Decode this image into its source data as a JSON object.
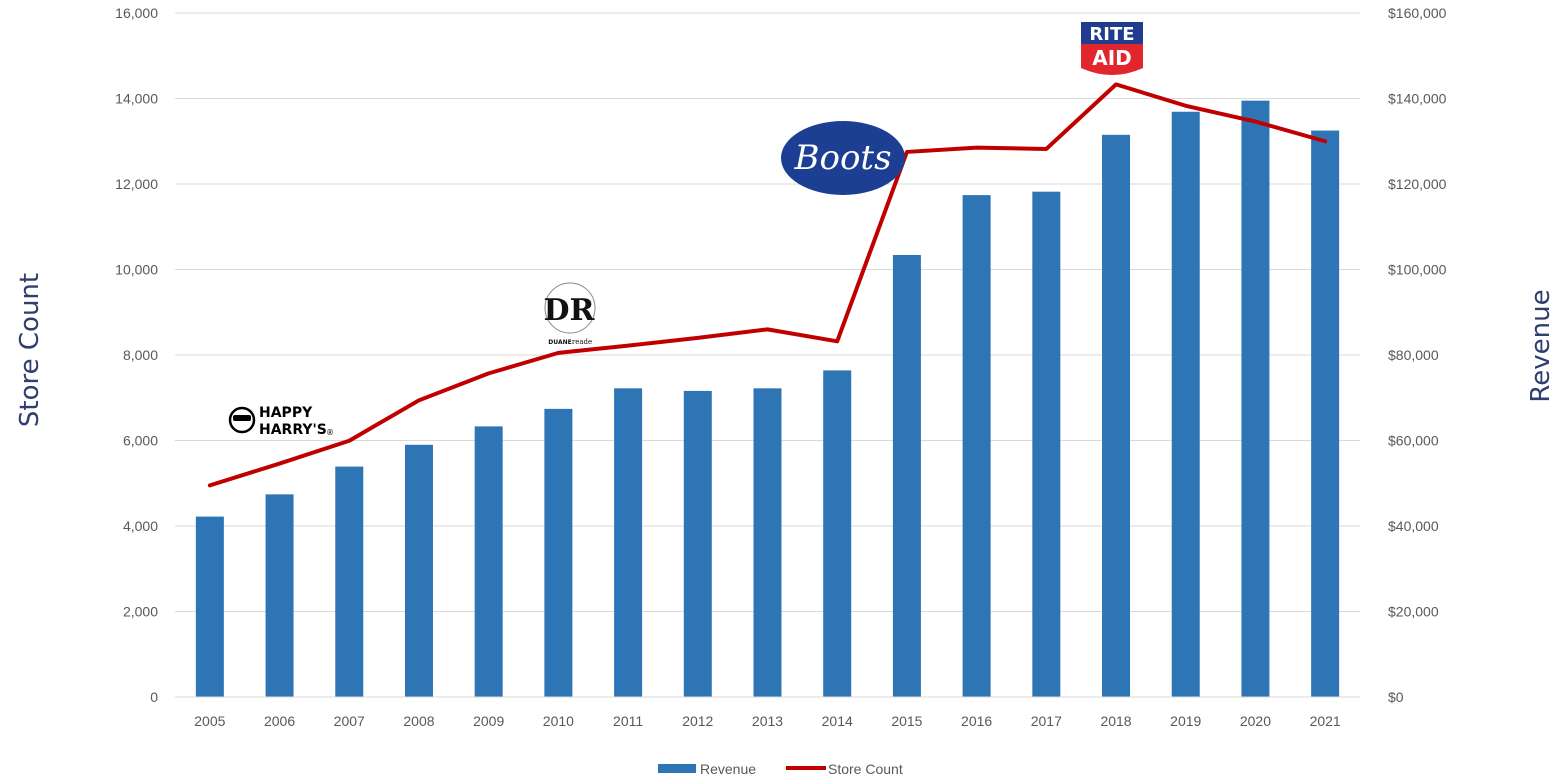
{
  "chart_data": {
    "type": "bar",
    "categories": [
      "2005",
      "2006",
      "2007",
      "2008",
      "2009",
      "2010",
      "2011",
      "2012",
      "2013",
      "2014",
      "2015",
      "2016",
      "2017",
      "2018",
      "2019",
      "2020",
      "2021"
    ],
    "series": [
      {
        "name": "Revenue",
        "type": "bar",
        "axis": "right",
        "color": "#2e75b6",
        "values": [
          42200,
          47400,
          53900,
          59000,
          63300,
          67400,
          72200,
          71600,
          72200,
          76400,
          103400,
          117400,
          118200,
          131500,
          136900,
          139500,
          132500
        ]
      },
      {
        "name": "Store Count",
        "type": "line",
        "axis": "left",
        "color": "#c00000",
        "values": [
          4950,
          5460,
          5995,
          6940,
          7570,
          8050,
          8220,
          8400,
          8600,
          8320,
          12750,
          12850,
          12820,
          14330,
          13830,
          13460,
          13000
        ]
      }
    ],
    "y_left": {
      "label": "Store Count",
      "range": [
        0,
        16000
      ],
      "ticks": [
        "0",
        "2,000",
        "4,000",
        "6,000",
        "8,000",
        "10,000",
        "12,000",
        "14,000",
        "16,000"
      ]
    },
    "y_right": {
      "label": "Revenue",
      "range": [
        0,
        160000
      ],
      "ticks": [
        "$0",
        "$20,000",
        "$40,000",
        "$60,000",
        "$80,000",
        "$100,000",
        "$120,000",
        "$140,000",
        "$160,000"
      ]
    },
    "grid": true,
    "legend_position": "bottom",
    "annotations": [
      {
        "name": "happy-harrys-logo",
        "year": "2005",
        "line1": "HAPPY",
        "line2": "HARRY'S",
        "mark": "®"
      },
      {
        "name": "duane-reade-logo",
        "year": "2010",
        "monogram": "DR",
        "word1": "DUANE",
        "word2": "reade"
      },
      {
        "name": "boots-logo",
        "year": "2014",
        "text": "Boots"
      },
      {
        "name": "rite-aid-logo",
        "year": "2018",
        "line1": "RITE",
        "line2": "AID"
      }
    ],
    "colors": {
      "bar": "#2e75b6",
      "line": "#c00000",
      "grid": "#d9d9d9",
      "boots": "#1d3f93",
      "rite_aid_top": "#1f3c8f",
      "rite_aid_bottom": "#e1262d"
    }
  }
}
